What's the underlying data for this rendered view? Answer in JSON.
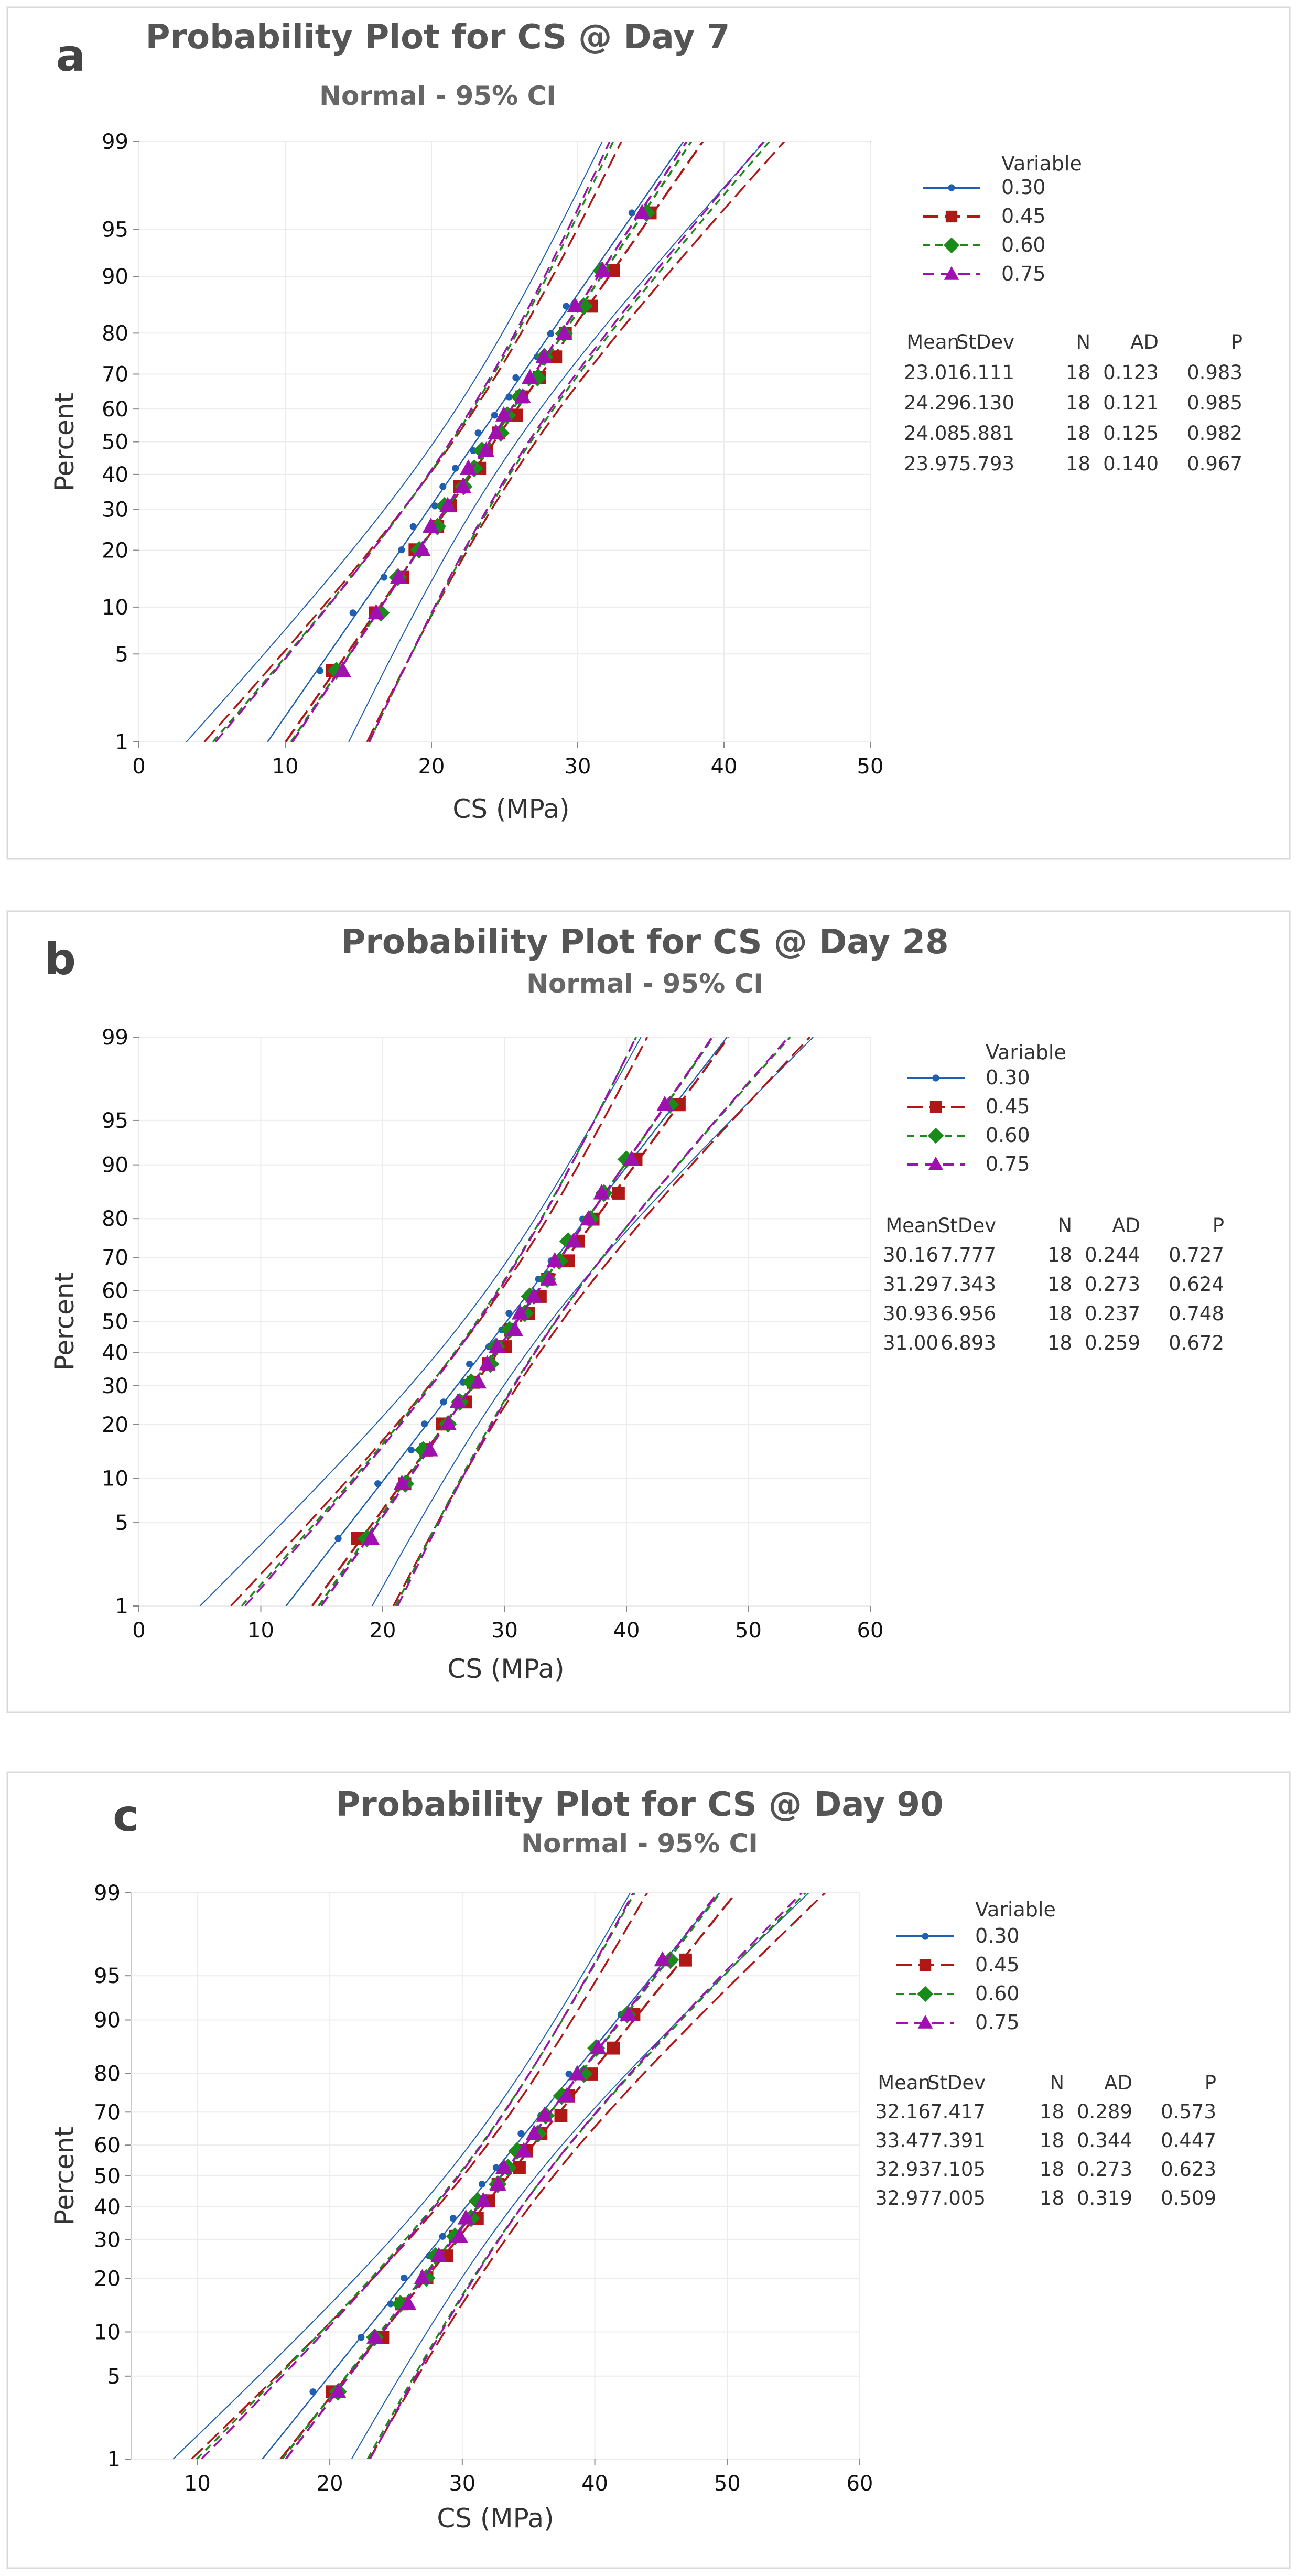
{
  "chart_data": [
    {
      "type": "scatter",
      "panel": "a",
      "title": "Probability Plot for CS @ Day 7",
      "subtitle": "Normal - 95% CI",
      "xlabel": "CS (MPa)",
      "ylabel": "Percent",
      "xlim": [
        0,
        50
      ],
      "xticks": [
        0,
        10,
        20,
        30,
        40,
        50
      ],
      "yticks": [
        1,
        5,
        10,
        20,
        30,
        40,
        50,
        60,
        70,
        80,
        90,
        95,
        99
      ],
      "n": 18,
      "legend": {
        "title": "Variable",
        "stat_headers": [
          "Mean",
          "StDev",
          "N",
          "AD",
          "P"
        ]
      },
      "series": [
        {
          "name": "0.30",
          "mean": 23.01,
          "stdev": 6.111,
          "n": 18,
          "ad": 0.123,
          "p": 0.983,
          "labels": {
            "mean": "23.01",
            "stdev": "6.111",
            "n": "18",
            "ad": "0.123",
            "p": "0.983"
          }
        },
        {
          "name": "0.45",
          "mean": 24.29,
          "stdev": 6.13,
          "n": 18,
          "ad": 0.121,
          "p": 0.985,
          "labels": {
            "mean": "24.29",
            "stdev": "6.130",
            "n": "18",
            "ad": "0.121",
            "p": "0.985"
          }
        },
        {
          "name": "0.60",
          "mean": 24.08,
          "stdev": 5.881,
          "n": 18,
          "ad": 0.125,
          "p": 0.982,
          "labels": {
            "mean": "24.08",
            "stdev": "5.881",
            "n": "18",
            "ad": "0.125",
            "p": "0.982"
          }
        },
        {
          "name": "0.75",
          "mean": 23.97,
          "stdev": 5.793,
          "n": 18,
          "ad": 0.14,
          "p": 0.967,
          "labels": {
            "mean": "23.97",
            "stdev": "5.793",
            "n": "18",
            "ad": "0.140",
            "p": "0.967"
          }
        }
      ]
    },
    {
      "type": "scatter",
      "panel": "b",
      "title": "Probability Plot for CS @ Day 28",
      "subtitle": "Normal - 95% CI",
      "xlabel": "CS (MPa)",
      "ylabel": "Percent",
      "xlim": [
        0,
        60
      ],
      "xticks": [
        0,
        10,
        20,
        30,
        40,
        50,
        60
      ],
      "yticks": [
        1,
        5,
        10,
        20,
        30,
        40,
        50,
        60,
        70,
        80,
        90,
        95,
        99
      ],
      "n": 18,
      "legend": {
        "title": "Variable",
        "stat_headers": [
          "Mean",
          "StDev",
          "N",
          "AD",
          "P"
        ]
      },
      "series": [
        {
          "name": "0.30",
          "mean": 30.16,
          "stdev": 7.777,
          "n": 18,
          "ad": 0.244,
          "p": 0.727,
          "labels": {
            "mean": "30.16",
            "stdev": "7.777",
            "n": "18",
            "ad": "0.244",
            "p": "0.727"
          }
        },
        {
          "name": "0.45",
          "mean": 31.29,
          "stdev": 7.343,
          "n": 18,
          "ad": 0.273,
          "p": 0.624,
          "labels": {
            "mean": "31.29",
            "stdev": "7.343",
            "n": "18",
            "ad": "0.273",
            "p": "0.624"
          }
        },
        {
          "name": "0.60",
          "mean": 30.93,
          "stdev": 6.956,
          "n": 18,
          "ad": 0.237,
          "p": 0.748,
          "labels": {
            "mean": "30.93",
            "stdev": "6.956",
            "n": "18",
            "ad": "0.237",
            "p": "0.748"
          }
        },
        {
          "name": "0.75",
          "mean": 31.0,
          "stdev": 6.893,
          "n": 18,
          "ad": 0.259,
          "p": 0.672,
          "labels": {
            "mean": "31.00",
            "stdev": "6.893",
            "n": "18",
            "ad": "0.259",
            "p": "0.672"
          }
        }
      ]
    },
    {
      "type": "scatter",
      "panel": "c",
      "title": "Probability Plot for CS @ Day 90",
      "subtitle": "Normal - 95% CI",
      "xlabel": "CS (MPa)",
      "ylabel": "Percent",
      "xlim": [
        5,
        60
      ],
      "xticks": [
        10,
        20,
        30,
        40,
        50,
        60
      ],
      "yticks": [
        1,
        5,
        10,
        20,
        30,
        40,
        50,
        60,
        70,
        80,
        90,
        95,
        99
      ],
      "n": 18,
      "legend": {
        "title": "Variable",
        "stat_headers": [
          "Mean",
          "StDev",
          "N",
          "AD",
          "P"
        ]
      },
      "series": [
        {
          "name": "0.30",
          "mean": 32.16,
          "stdev": 7.417,
          "n": 18,
          "ad": 0.289,
          "p": 0.573,
          "labels": {
            "mean": "32.16",
            "stdev": "7.417",
            "n": "18",
            "ad": "0.289",
            "p": "0.573"
          }
        },
        {
          "name": "0.45",
          "mean": 33.47,
          "stdev": 7.391,
          "n": 18,
          "ad": 0.344,
          "p": 0.447,
          "labels": {
            "mean": "33.47",
            "stdev": "7.391",
            "n": "18",
            "ad": "0.344",
            "p": "0.447"
          }
        },
        {
          "name": "0.60",
          "mean": 32.93,
          "stdev": 7.105,
          "n": 18,
          "ad": 0.273,
          "p": 0.623,
          "labels": {
            "mean": "32.93",
            "stdev": "7.105",
            "n": "18",
            "ad": "0.273",
            "p": "0.623"
          }
        },
        {
          "name": "0.75",
          "mean": 32.97,
          "stdev": 7.005,
          "n": 18,
          "ad": 0.319,
          "p": 0.509,
          "labels": {
            "mean": "32.97",
            "stdev": "7.005",
            "n": "18",
            "ad": "0.319",
            "p": "0.509"
          }
        }
      ]
    }
  ],
  "series_styles": [
    {
      "name": "0.30",
      "color": "#1f5fb0",
      "marker": "circle",
      "dash": "solid"
    },
    {
      "name": "0.45",
      "color": "#b01818",
      "marker": "square",
      "dash": "long-dash"
    },
    {
      "name": "0.60",
      "color": "#1a8a1a",
      "marker": "diamond",
      "dash": "short-dash"
    },
    {
      "name": "0.75",
      "color": "#a010b0",
      "marker": "triangle",
      "dash": "dash"
    }
  ]
}
